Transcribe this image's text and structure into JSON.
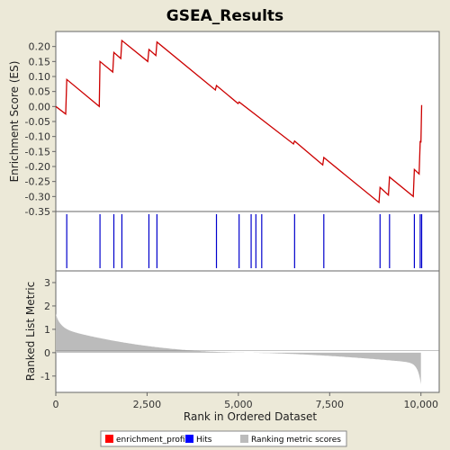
{
  "chart_data": {
    "title": "GSEA_Results",
    "type": "line",
    "panels": {
      "es": {
        "ylabel": "Enrichment Score (ES)",
        "ylim": [
          -0.35,
          0.25
        ],
        "yticks": [
          0.2,
          0.15,
          0.1,
          0.05,
          0.0,
          -0.05,
          -0.1,
          -0.15,
          -0.2,
          -0.25,
          -0.3,
          -0.35
        ],
        "ytick_labels": [
          "0.20",
          "0.15",
          "0.10",
          "0.05",
          "0.00",
          "-0.05",
          "-0.10",
          "-0.15",
          "-0.20",
          "-0.25",
          "-0.30",
          "-0.35"
        ],
        "series": [
          {
            "name": "enrichment_profile",
            "color": "#cc0000",
            "x": [
              0,
              270,
              300,
              1190,
              1210,
              1560,
              1590,
              1780,
              1810,
              2520,
              2550,
              2740,
              2770,
              4370,
              4400,
              4990,
              5020,
              6510,
              6540,
              7310,
              7340,
              8850,
              8880,
              9110,
              9140,
              9790,
              9820,
              9950,
              9980,
              10000,
              10020
            ],
            "y": [
              0.0,
              -0.025,
              0.09,
              0.0,
              0.15,
              0.115,
              0.18,
              0.16,
              0.22,
              0.15,
              0.19,
              0.17,
              0.215,
              0.055,
              0.07,
              0.01,
              0.015,
              -0.125,
              -0.115,
              -0.195,
              -0.17,
              -0.32,
              -0.27,
              -0.295,
              -0.235,
              -0.3,
              -0.21,
              -0.225,
              -0.115,
              -0.12,
              0.005
            ]
          }
        ]
      },
      "hits": {
        "name": "Hits",
        "color": "#0000cc",
        "positions": [
          300,
          1210,
          1590,
          1810,
          2550,
          2770,
          4400,
          5020,
          5350,
          5480,
          5640,
          6540,
          7340,
          8880,
          9140,
          9820,
          9980,
          10020
        ]
      },
      "ranked": {
        "name": "Ranking metric scores",
        "color": "#bbbbbb",
        "ylabel": "Ranked List Metric",
        "ylim": [
          -1.7,
          3.5
        ],
        "yticks": [
          3,
          2,
          1,
          0,
          -1
        ],
        "ytick_labels": [
          "3",
          "2",
          "1",
          "0",
          "-1"
        ]
      }
    },
    "x_axis": {
      "xlabel": "Rank in Ordered Dataset",
      "xlim": [
        0,
        10500
      ],
      "xticks": [
        0,
        2500,
        5000,
        7500,
        10000
      ],
      "xtick_labels": [
        "0",
        "2,500",
        "5,000",
        "7,500",
        "10,000"
      ]
    },
    "legend": {
      "placement": "bottom",
      "entries": [
        {
          "label": "enrichment_profile",
          "color": "#ff0000"
        },
        {
          "label": "Hits",
          "color": "#0000ff"
        },
        {
          "label": "Ranking metric scores",
          "color": "#bbbbbb"
        }
      ]
    }
  }
}
